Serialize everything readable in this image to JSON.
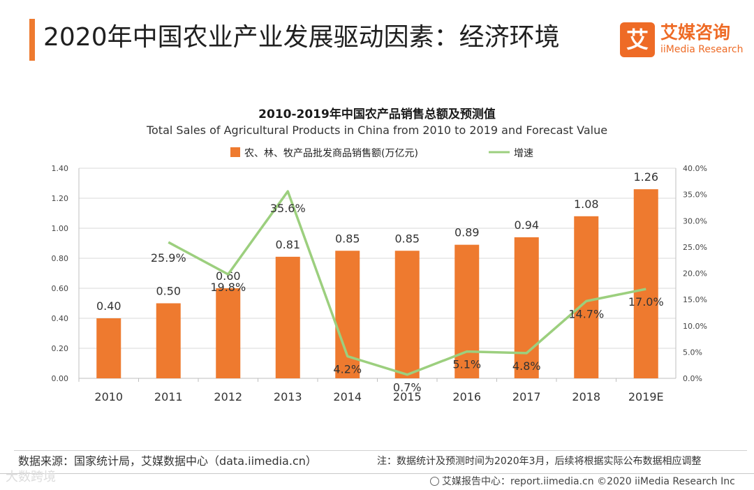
{
  "header": {
    "title": "2020年中国农业产业发展驱动因素：经济环境",
    "logo_cn": "艾媒咨询",
    "logo_en": "iiMedia Research",
    "logo_mark": "艾"
  },
  "footer": {
    "source": "数据来源：国家统计局，艾媒数据中心（data.iimedia.cn）",
    "note": "注：数据统计及预测时间为2020年3月，后续将根据实际公布数据相应调整",
    "report": "艾媒报告中心：report.iimedia.cn ©2020 iiMedia Research Inc",
    "watermark": "大数跨境"
  },
  "colors": {
    "accent": "#ee7a2f",
    "bar": "#ee7a2f",
    "line": "#9ccf7e",
    "grid": "#d9d9d9"
  },
  "chart_data": {
    "type": "bar",
    "title": "2010-2019年中国农产品销售总额及预测值",
    "subtitle": "Total Sales of Agricultural Products in China from 2010 to 2019 and Forecast Value",
    "categories": [
      "2010",
      "2011",
      "2012",
      "2013",
      "2014",
      "2015",
      "2016",
      "2017",
      "2018",
      "2019E"
    ],
    "series": [
      {
        "name": "农、林、牧产品批发商品销售额(万亿元)",
        "type": "bar",
        "axis": "left",
        "values": [
          0.4,
          0.5,
          0.6,
          0.81,
          0.85,
          0.85,
          0.89,
          0.94,
          1.08,
          1.26
        ],
        "labels": [
          "0.40",
          "0.50",
          "0.60",
          "0.81",
          "0.85",
          "0.85",
          "0.89",
          "0.94",
          "1.08",
          "1.26"
        ]
      },
      {
        "name": "增速",
        "type": "line",
        "axis": "right",
        "values": [
          null,
          25.9,
          19.8,
          35.6,
          4.2,
          0.7,
          5.1,
          4.8,
          14.7,
          17.0
        ],
        "labels": [
          "",
          "25.9%",
          "19.8%",
          "35.6%",
          "4.2%",
          "0.7%",
          "5.1%",
          "4.8%",
          "14.7%",
          "17.0%"
        ]
      }
    ],
    "ylim_left": [
      0,
      1.4
    ],
    "yticks_left": [
      "0.00",
      "0.20",
      "0.40",
      "0.60",
      "0.80",
      "1.00",
      "1.20",
      "1.40"
    ],
    "ylim_right": [
      0,
      40
    ],
    "yticks_right": [
      "0.0%",
      "5.0%",
      "10.0%",
      "15.0%",
      "20.0%",
      "25.0%",
      "30.0%",
      "35.0%",
      "40.0%"
    ],
    "grid": true,
    "legend_position": "top-center"
  }
}
